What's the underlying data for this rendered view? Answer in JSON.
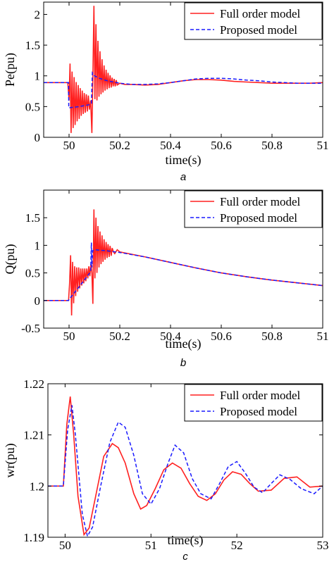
{
  "legend": {
    "full": "Full order model",
    "proposed": "Proposed model"
  },
  "colors": {
    "full": "#ff2020",
    "proposed": "#1a1aff",
    "axis": "#000000"
  },
  "chart_data": [
    {
      "type": "line",
      "caption": "a",
      "xlabel": "time(s)",
      "ylabel": "Pe(pu)",
      "xlim": [
        49.9,
        51.0
      ],
      "ylim": [
        0,
        2.2
      ],
      "xticks": [
        50,
        50.2,
        50.4,
        50.6,
        50.8,
        51
      ],
      "xtick_labels": [
        "50",
        "50.2",
        "50.4",
        "50.6",
        "50.8",
        "51"
      ],
      "yticks": [
        0,
        0.5,
        1,
        1.5,
        2
      ],
      "ytick_labels": [
        "0",
        "0.5",
        "1",
        "1.5",
        "2"
      ],
      "legend_position": "top-right",
      "series": [
        {
          "name": "Full order model",
          "x": [
            49.9,
            49.995,
            50.0,
            50.004,
            50.008,
            50.012,
            50.016,
            50.02,
            50.024,
            50.028,
            50.032,
            50.036,
            50.04,
            50.044,
            50.048,
            50.052,
            50.056,
            50.06,
            50.064,
            50.068,
            50.072,
            50.076,
            50.08,
            50.085,
            50.09,
            50.094,
            50.098,
            50.102,
            50.106,
            50.11,
            50.114,
            50.118,
            50.122,
            50.126,
            50.13,
            50.134,
            50.138,
            50.142,
            50.146,
            50.15,
            50.154,
            50.158,
            50.162,
            50.166,
            50.17,
            50.174,
            50.178,
            50.182,
            50.186,
            50.19,
            50.2,
            50.22,
            50.25,
            50.3,
            50.35,
            50.4,
            50.45,
            50.5,
            50.55,
            50.6,
            50.65,
            50.7,
            50.75,
            50.8,
            50.85,
            50.9,
            50.95,
            51.0
          ],
          "y": [
            0.89,
            0.89,
            0.6,
            1.2,
            0.07,
            1.07,
            0.15,
            0.98,
            0.2,
            0.9,
            0.26,
            0.85,
            0.3,
            0.8,
            0.35,
            0.76,
            0.38,
            0.72,
            0.4,
            0.7,
            0.42,
            0.68,
            0.45,
            0.6,
            0.07,
            0.98,
            2.14,
            0.62,
            1.84,
            0.6,
            1.57,
            0.66,
            1.4,
            0.7,
            1.27,
            0.73,
            1.17,
            0.76,
            1.1,
            0.78,
            1.05,
            0.8,
            1.01,
            0.81,
            0.97,
            0.83,
            0.95,
            0.83,
            0.93,
            0.85,
            0.88,
            0.86,
            0.86,
            0.85,
            0.86,
            0.89,
            0.92,
            0.94,
            0.94,
            0.93,
            0.91,
            0.9,
            0.89,
            0.88,
            0.88,
            0.88,
            0.88,
            0.89
          ]
        },
        {
          "name": "Proposed model",
          "x": [
            49.9,
            49.998,
            49.999,
            50.04,
            50.08,
            50.088,
            50.092,
            50.1,
            50.12,
            50.15,
            50.2,
            50.25,
            50.3,
            50.35,
            50.4,
            50.45,
            50.5,
            50.55,
            50.6,
            50.65,
            50.7,
            50.75,
            50.8,
            50.85,
            50.9,
            50.95,
            51.0
          ],
          "y": [
            0.89,
            0.89,
            0.48,
            0.5,
            0.53,
            0.55,
            1.05,
            1.0,
            0.96,
            0.92,
            0.88,
            0.86,
            0.86,
            0.87,
            0.89,
            0.92,
            0.95,
            0.96,
            0.96,
            0.95,
            0.93,
            0.92,
            0.9,
            0.89,
            0.88,
            0.88,
            0.88
          ]
        }
      ]
    },
    {
      "type": "line",
      "caption": "b",
      "xlabel": "time(s)",
      "ylabel": "Q(pu)",
      "xlim": [
        49.9,
        51.0
      ],
      "ylim": [
        -0.5,
        2.0
      ],
      "xticks": [
        50,
        50.2,
        50.4,
        50.6,
        50.8,
        51
      ],
      "xtick_labels": [
        "50",
        "50.2",
        "50.4",
        "50.6",
        "50.8",
        "51"
      ],
      "yticks": [
        -0.5,
        0,
        0.5,
        1,
        1.5
      ],
      "ytick_labels": [
        "-0.5",
        "0",
        "0.5",
        "1",
        "1.5"
      ],
      "legend_position": "top-right",
      "series": [
        {
          "name": "Full order model",
          "x": [
            49.9,
            49.998,
            50.002,
            50.006,
            50.01,
            50.014,
            50.018,
            50.022,
            50.026,
            50.03,
            50.034,
            50.038,
            50.042,
            50.046,
            50.05,
            50.054,
            50.058,
            50.062,
            50.066,
            50.07,
            50.074,
            50.078,
            50.082,
            50.086,
            50.09,
            50.094,
            50.098,
            50.102,
            50.106,
            50.11,
            50.114,
            50.118,
            50.122,
            50.126,
            50.13,
            50.134,
            50.138,
            50.142,
            50.146,
            50.15,
            50.154,
            50.158,
            50.162,
            50.166,
            50.17,
            50.175,
            50.18,
            50.19,
            50.2,
            50.3,
            50.4,
            50.5,
            50.6,
            50.7,
            50.8,
            50.9,
            51.0
          ],
          "y": [
            0.0,
            0.0,
            0.3,
            0.82,
            -0.27,
            0.7,
            -0.05,
            0.62,
            0.08,
            0.6,
            0.16,
            0.6,
            0.22,
            0.58,
            0.27,
            0.58,
            0.31,
            0.58,
            0.35,
            0.58,
            0.4,
            0.62,
            0.44,
            0.66,
            0.5,
            -0.06,
            1.65,
            0.4,
            1.5,
            0.5,
            1.35,
            0.6,
            1.25,
            0.66,
            1.18,
            0.7,
            1.11,
            0.74,
            1.06,
            0.77,
            1.02,
            0.79,
            0.99,
            0.81,
            0.95,
            0.88,
            0.85,
            0.92,
            0.88,
            0.79,
            0.69,
            0.59,
            0.5,
            0.43,
            0.37,
            0.32,
            0.27
          ]
        },
        {
          "name": "Proposed model",
          "x": [
            49.9,
            49.998,
            50.0,
            50.04,
            50.085,
            50.088,
            50.09,
            50.093,
            50.1,
            50.15,
            50.2,
            50.3,
            50.4,
            50.5,
            50.6,
            50.7,
            50.8,
            50.9,
            51.0
          ],
          "y": [
            0.0,
            0.0,
            0.02,
            0.25,
            0.52,
            1.05,
            0.6,
            0.9,
            0.92,
            0.9,
            0.87,
            0.79,
            0.69,
            0.59,
            0.5,
            0.43,
            0.37,
            0.32,
            0.27
          ]
        }
      ]
    },
    {
      "type": "line",
      "caption": "c",
      "xlabel": "time(s)",
      "ylabel": "wr(pu)",
      "xlim": [
        49.8,
        53.0
      ],
      "ylim": [
        1.19,
        1.22
      ],
      "xticks": [
        50,
        51,
        52,
        53
      ],
      "xtick_labels": [
        "50",
        "51",
        "52",
        "53"
      ],
      "yticks": [
        1.19,
        1.2,
        1.21,
        1.22
      ],
      "ytick_labels": [
        "1.19",
        "1.2",
        "1.21",
        "1.22"
      ],
      "legend_position": "top-right",
      "series": [
        {
          "name": "Full order model",
          "x": [
            49.8,
            49.95,
            49.98,
            50.02,
            50.06,
            50.1,
            50.15,
            50.22,
            50.28,
            50.35,
            50.45,
            50.55,
            50.62,
            50.7,
            50.8,
            50.88,
            50.95,
            51.05,
            51.15,
            51.25,
            51.35,
            51.45,
            51.55,
            51.65,
            51.75,
            51.85,
            51.95,
            52.05,
            52.15,
            52.25,
            52.4,
            52.55,
            52.7,
            52.85,
            53.0
          ],
          "y": [
            1.2,
            1.2,
            1.2,
            1.212,
            1.2175,
            1.21,
            1.198,
            1.1905,
            1.1918,
            1.1975,
            1.2058,
            1.2083,
            1.2075,
            1.2045,
            1.1985,
            1.1955,
            1.1962,
            1.1995,
            1.2032,
            1.2045,
            1.2035,
            1.2005,
            1.198,
            1.1972,
            1.1985,
            1.2012,
            1.2028,
            1.2023,
            1.2005,
            1.199,
            1.1992,
            1.2015,
            1.2018,
            1.1998,
            1.2
          ]
        },
        {
          "name": "Proposed model",
          "x": [
            49.8,
            49.95,
            49.98,
            50.03,
            50.08,
            50.12,
            50.2,
            50.26,
            50.32,
            50.42,
            50.52,
            50.62,
            50.7,
            50.8,
            50.9,
            51.0,
            51.1,
            51.2,
            51.28,
            51.38,
            51.48,
            51.58,
            51.7,
            51.8,
            51.9,
            52.0,
            52.1,
            52.2,
            52.3,
            52.4,
            52.5,
            52.62,
            52.75,
            52.9,
            53.0
          ],
          "y": [
            1.2,
            1.2,
            1.2,
            1.211,
            1.2158,
            1.21,
            1.1945,
            1.1902,
            1.192,
            1.2005,
            1.2085,
            1.2125,
            1.2115,
            1.206,
            1.1985,
            1.1965,
            1.1995,
            1.2045,
            1.208,
            1.2065,
            1.2015,
            1.1985,
            1.1975,
            1.2005,
            1.2038,
            1.2048,
            1.2025,
            1.1998,
            1.1987,
            1.2005,
            1.2022,
            1.2013,
            1.1995,
            1.1985,
            1.2
          ]
        }
      ]
    }
  ]
}
